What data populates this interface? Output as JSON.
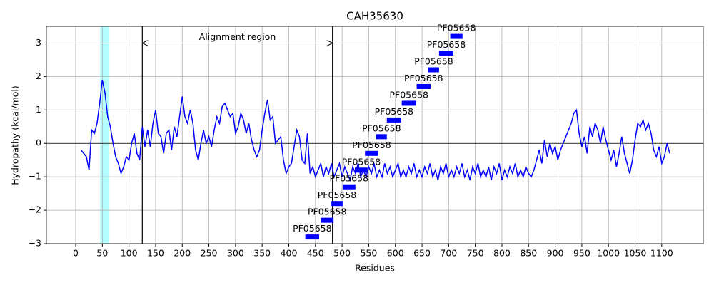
{
  "chart_data": {
    "type": "line",
    "title": "CAH35630",
    "xlabel": "Residues",
    "ylabel": "Hydropathy (kcal/mol)",
    "color": "#0000ff",
    "grid": true,
    "xlim": [
      -55,
      1178
    ],
    "ylim": [
      -3,
      3.5
    ],
    "xticks": [
      0,
      50,
      100,
      150,
      200,
      250,
      300,
      350,
      400,
      450,
      500,
      550,
      600,
      650,
      700,
      750,
      800,
      850,
      900,
      950,
      1000,
      1050,
      1100
    ],
    "yticks": [
      {
        "value": -3,
        "label": "−3"
      },
      {
        "value": -2,
        "label": "−2"
      },
      {
        "value": -1,
        "label": "−1"
      },
      0,
      1,
      2,
      3
    ],
    "highlight": [
      46,
      62
    ],
    "highlight_color": "#b3ffff",
    "vlines": [
      125,
      482
    ],
    "annotation": "Alignment region",
    "arrow_y": 3,
    "x": [
      10,
      20,
      25,
      30,
      35,
      40,
      45,
      50,
      55,
      60,
      65,
      70,
      75,
      80,
      85,
      90,
      95,
      100,
      105,
      110,
      115,
      120,
      125,
      130,
      135,
      140,
      145,
      150,
      155,
      160,
      165,
      170,
      175,
      180,
      185,
      190,
      195,
      200,
      205,
      210,
      215,
      220,
      225,
      230,
      235,
      240,
      245,
      250,
      255,
      260,
      265,
      270,
      275,
      280,
      285,
      290,
      295,
      300,
      305,
      310,
      315,
      320,
      325,
      330,
      335,
      340,
      345,
      350,
      355,
      360,
      365,
      370,
      375,
      380,
      385,
      390,
      395,
      400,
      405,
      410,
      415,
      420,
      425,
      430,
      435,
      440,
      445,
      450,
      455,
      460,
      465,
      470,
      475,
      480,
      485,
      490,
      495,
      500,
      505,
      510,
      515,
      520,
      525,
      530,
      535,
      540,
      545,
      550,
      555,
      560,
      565,
      570,
      575,
      580,
      585,
      590,
      595,
      600,
      605,
      610,
      615,
      620,
      625,
      630,
      635,
      640,
      645,
      650,
      655,
      660,
      665,
      670,
      675,
      680,
      685,
      690,
      695,
      700,
      705,
      710,
      715,
      720,
      725,
      730,
      735,
      740,
      745,
      750,
      755,
      760,
      765,
      770,
      775,
      780,
      785,
      790,
      795,
      800,
      805,
      810,
      815,
      820,
      825,
      830,
      835,
      840,
      845,
      850,
      855,
      860,
      865,
      870,
      875,
      880,
      885,
      890,
      895,
      900,
      905,
      910,
      915,
      920,
      925,
      930,
      935,
      940,
      945,
      950,
      955,
      960,
      965,
      970,
      975,
      980,
      985,
      990,
      995,
      1000,
      1005,
      1010,
      1015,
      1020,
      1025,
      1030,
      1035,
      1040,
      1045,
      1050,
      1055,
      1060,
      1065,
      1070,
      1075,
      1080,
      1085,
      1090,
      1095,
      1100,
      1105,
      1110,
      1115
    ],
    "values": [
      -0.2,
      -0.4,
      -0.8,
      0.4,
      0.3,
      0.6,
      1.2,
      1.9,
      1.5,
      0.8,
      0.5,
      0.0,
      -0.4,
      -0.6,
      -0.9,
      -0.7,
      -0.4,
      -0.5,
      0.0,
      0.3,
      -0.3,
      -0.5,
      0.5,
      -0.1,
      0.4,
      -0.1,
      0.6,
      1.0,
      0.3,
      0.2,
      -0.3,
      0.3,
      0.4,
      -0.2,
      0.5,
      0.2,
      0.8,
      1.4,
      0.8,
      0.6,
      1.0,
      0.6,
      -0.2,
      -0.5,
      0.0,
      0.4,
      0.0,
      0.2,
      -0.1,
      0.4,
      0.8,
      0.6,
      1.1,
      1.2,
      1.0,
      0.8,
      0.9,
      0.3,
      0.5,
      0.9,
      0.7,
      0.3,
      0.6,
      0.1,
      -0.2,
      -0.4,
      -0.2,
      0.4,
      0.9,
      1.3,
      0.7,
      0.8,
      0.0,
      0.1,
      0.2,
      -0.5,
      -0.9,
      -0.7,
      -0.6,
      -0.1,
      0.4,
      0.2,
      -0.5,
      -0.6,
      0.3,
      -0.9,
      -0.7,
      -1.0,
      -0.8,
      -0.6,
      -1.0,
      -0.7,
      -0.9,
      -0.6,
      -1.0,
      -0.8,
      -0.6,
      -1.0,
      -0.7,
      -0.9,
      -1.1,
      -0.7,
      -0.9,
      -0.6,
      -1.0,
      -0.8,
      -1.0,
      -0.7,
      -0.9,
      -0.6,
      -1.0,
      -0.8,
      -1.0,
      -0.6,
      -0.9,
      -0.7,
      -1.0,
      -0.8,
      -0.6,
      -1.0,
      -0.8,
      -1.0,
      -0.7,
      -0.9,
      -0.6,
      -1.0,
      -0.8,
      -1.0,
      -0.7,
      -0.9,
      -0.6,
      -1.0,
      -0.8,
      -1.1,
      -0.7,
      -0.9,
      -0.6,
      -1.0,
      -0.8,
      -1.0,
      -0.7,
      -0.9,
      -0.6,
      -1.0,
      -0.8,
      -1.1,
      -0.7,
      -0.9,
      -0.6,
      -1.0,
      -0.8,
      -1.0,
      -0.7,
      -1.1,
      -0.7,
      -0.9,
      -0.6,
      -1.1,
      -0.8,
      -1.0,
      -0.7,
      -0.9,
      -0.6,
      -1.0,
      -0.8,
      -1.0,
      -0.7,
      -0.9,
      -1.0,
      -0.8,
      -0.5,
      -0.2,
      -0.6,
      0.1,
      -0.4,
      0.0,
      -0.3,
      -0.1,
      -0.5,
      -0.2,
      0.0,
      0.2,
      0.4,
      0.6,
      0.9,
      1.0,
      0.3,
      -0.1,
      0.2,
      -0.3,
      0.5,
      0.2,
      0.6,
      0.4,
      0.0,
      0.5,
      0.1,
      -0.2,
      -0.5,
      -0.2,
      -0.7,
      -0.3,
      0.2,
      -0.3,
      -0.6,
      -0.9,
      -0.5,
      0.1,
      0.6,
      0.5,
      0.7,
      0.4,
      0.6,
      0.3,
      -0.2,
      -0.4,
      -0.1,
      -0.6,
      -0.4,
      0.0,
      -0.3
    ],
    "domain_color": "#0000ff",
    "domains": [
      {
        "label": "PF05658",
        "start": 431,
        "end": 457,
        "y": -2.8
      },
      {
        "label": "PF05658",
        "start": 460,
        "end": 484,
        "y": -2.3
      },
      {
        "label": "PF05658",
        "start": 480,
        "end": 501,
        "y": -1.8
      },
      {
        "label": "PF05658",
        "start": 501,
        "end": 525,
        "y": -1.3
      },
      {
        "label": "PF05658",
        "start": 524,
        "end": 548,
        "y": -0.8
      },
      {
        "label": "PF05658",
        "start": 543,
        "end": 568,
        "y": -0.3
      },
      {
        "label": "PF05658",
        "start": 564,
        "end": 584,
        "y": 0.2
      },
      {
        "label": "PF05658",
        "start": 584,
        "end": 611,
        "y": 0.7
      },
      {
        "label": "PF05658",
        "start": 612,
        "end": 639,
        "y": 1.2
      },
      {
        "label": "PF05658",
        "start": 640,
        "end": 666,
        "y": 1.7
      },
      {
        "label": "PF05658",
        "start": 662,
        "end": 682,
        "y": 2.2
      },
      {
        "label": "PF05658",
        "start": 682,
        "end": 709,
        "y": 2.7
      },
      {
        "label": "PF05658",
        "start": 703,
        "end": 726,
        "y": 3.2
      }
    ]
  }
}
